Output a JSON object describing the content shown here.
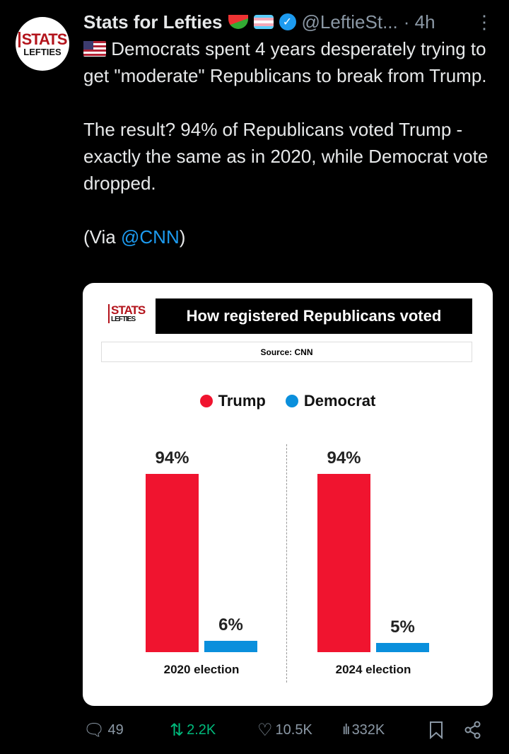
{
  "post": {
    "author": "Stats for Lefties",
    "handle": "@LeftieSt...",
    "time": "· 4h",
    "paragraphs": [
      "Democrats spent 4 years desperately trying to get \"moderate\" Republicans to break from Trump.",
      "The result? 94% of Republicans voted Trump - exactly the same as in 2020, while Democrat vote dropped."
    ],
    "via_prefix": "(Via ",
    "via_link": "@CNN",
    "via_suffix": ")"
  },
  "avatar": {
    "logo_top": "STATS",
    "logo_bottom": "LEFTIES"
  },
  "chart_data": {
    "type": "bar",
    "title": "How registered Republicans voted",
    "source": "Source: CNN",
    "categories": [
      "2020 election",
      "2024 election"
    ],
    "series": [
      {
        "name": "Trump",
        "color": "#f0142f",
        "values": [
          94,
          94
        ]
      },
      {
        "name": "Democrat",
        "color": "#0a8fdc",
        "values": [
          6,
          5
        ]
      }
    ],
    "ylim": [
      0,
      100
    ],
    "value_suffix": "%"
  },
  "actions": {
    "replies": "49",
    "reposts": "2.2K",
    "likes": "10.5K",
    "views": "332K"
  },
  "colors": {
    "repost": "#00ba7c",
    "link": "#1d9bf0"
  }
}
